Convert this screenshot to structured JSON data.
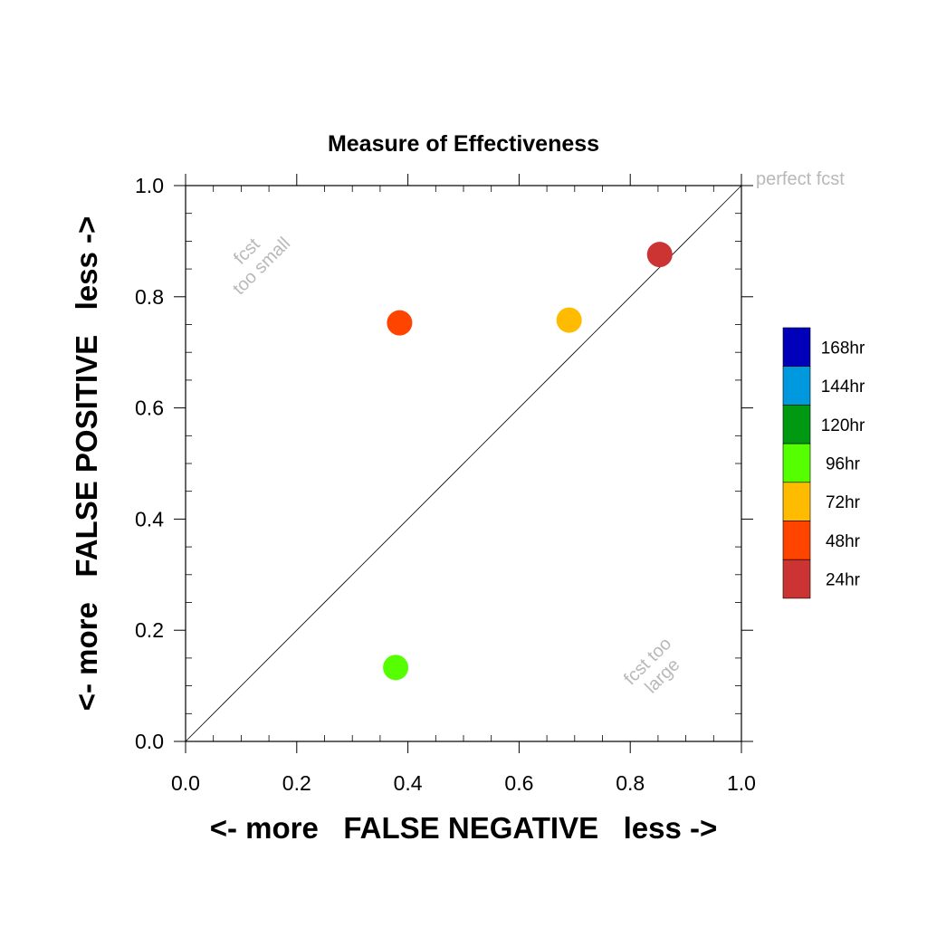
{
  "chart_data": {
    "type": "scatter",
    "title": "Measure of Effectiveness",
    "xlabel": "<- more   FALSE NEGATIVE   less ->",
    "ylabel": "<- more   FALSE POSITIVE   less ->",
    "xlim": [
      0,
      1
    ],
    "ylim": [
      0,
      1
    ],
    "xticks": [
      "0.0",
      "0.2",
      "0.4",
      "0.6",
      "0.8",
      "1.0"
    ],
    "yticks": [
      "0.0",
      "0.2",
      "0.4",
      "0.6",
      "0.8",
      "1.0"
    ],
    "tick_values": [
      0,
      0.2,
      0.4,
      0.6,
      0.8,
      1.0
    ],
    "grid": false,
    "reference_line": "diagonal y = x",
    "annotations": {
      "perfect": "perfect fcst",
      "too_small_line1": "fcst",
      "too_small_line2": "too small",
      "too_large_line1": "fcst too",
      "too_large_line2": "large"
    },
    "series": [
      {
        "name": "24hr",
        "color": "#cc3333",
        "x": 0.853,
        "y": 0.876
      },
      {
        "name": "48hr",
        "color": "#ff4400",
        "x": 0.385,
        "y": 0.753
      },
      {
        "name": "72hr",
        "color": "#ffbb00",
        "x": 0.69,
        "y": 0.758
      },
      {
        "name": "96hr",
        "color": "#55ff00",
        "x": 0.378,
        "y": 0.133
      }
    ],
    "legend": {
      "placement": "right",
      "entries": [
        {
          "label": "168hr",
          "color": "#0000bb"
        },
        {
          "label": "144hr",
          "color": "#0099dd"
        },
        {
          "label": "120hr",
          "color": "#009911"
        },
        {
          "label": "96hr",
          "color": "#55ff00"
        },
        {
          "label": "72hr",
          "color": "#ffbb00"
        },
        {
          "label": "48hr",
          "color": "#ff4400"
        },
        {
          "label": "24hr",
          "color": "#cc3333"
        }
      ]
    }
  }
}
